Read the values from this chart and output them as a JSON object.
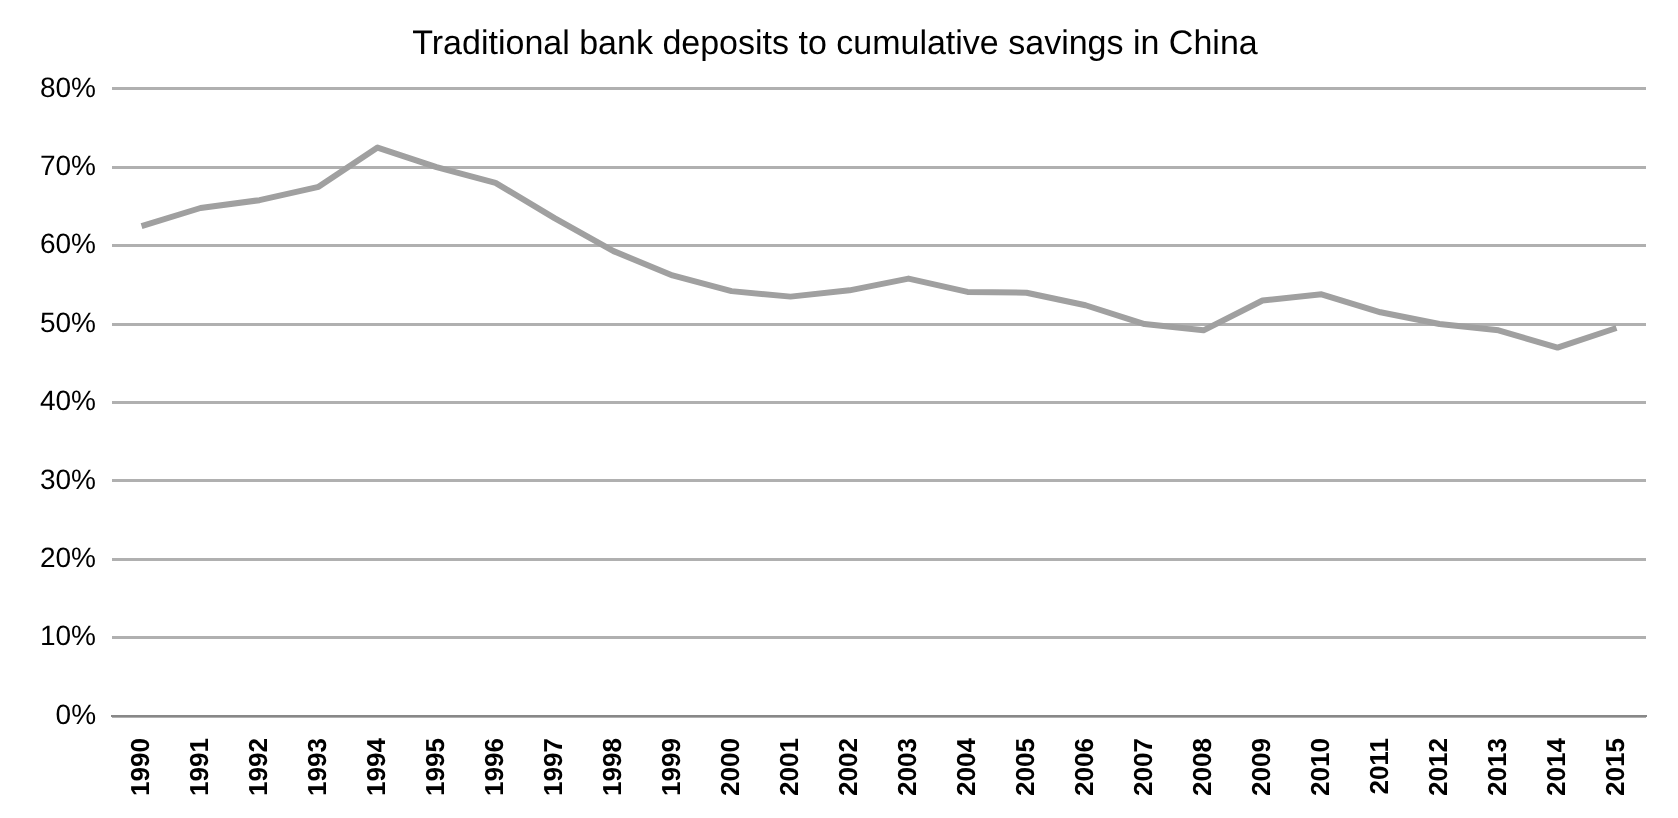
{
  "chart_data": {
    "type": "line",
    "title": "Traditional bank deposits to cumulative savings in China",
    "categories": [
      "1990",
      "1991",
      "1992",
      "1993",
      "1994",
      "1995",
      "1996",
      "1997",
      "1998",
      "1999",
      "2000",
      "2001",
      "2002",
      "2003",
      "2004",
      "2005",
      "2006",
      "2007",
      "2008",
      "2009",
      "2010",
      "2011",
      "2012",
      "2013",
      "2014",
      "2015"
    ],
    "series": [
      {
        "color": "#a0a0a0",
        "values": [
          62.5,
          64.8,
          65.8,
          67.5,
          72.5,
          70,
          68,
          63.5,
          59.3,
          56.2,
          54.2,
          53.5,
          54.3,
          55.8,
          54.1,
          54,
          52.4,
          50,
          49.2,
          53,
          53.8,
          51.5,
          50,
          49.2,
          47,
          49.5
        ]
      }
    ],
    "ylim": [
      0,
      80
    ],
    "yticks": [
      {
        "value": 0,
        "label": "0%"
      },
      {
        "value": 10,
        "label": "10%"
      },
      {
        "value": 20,
        "label": "20%"
      },
      {
        "value": 30,
        "label": "30%"
      },
      {
        "value": 40,
        "label": "40%"
      },
      {
        "value": 50,
        "label": "50%"
      },
      {
        "value": 60,
        "label": "60%"
      },
      {
        "value": 70,
        "label": "70%"
      },
      {
        "value": 80,
        "label": "80%"
      }
    ],
    "grid": "y",
    "legend": false,
    "marker": "none",
    "line_style": "solid"
  }
}
